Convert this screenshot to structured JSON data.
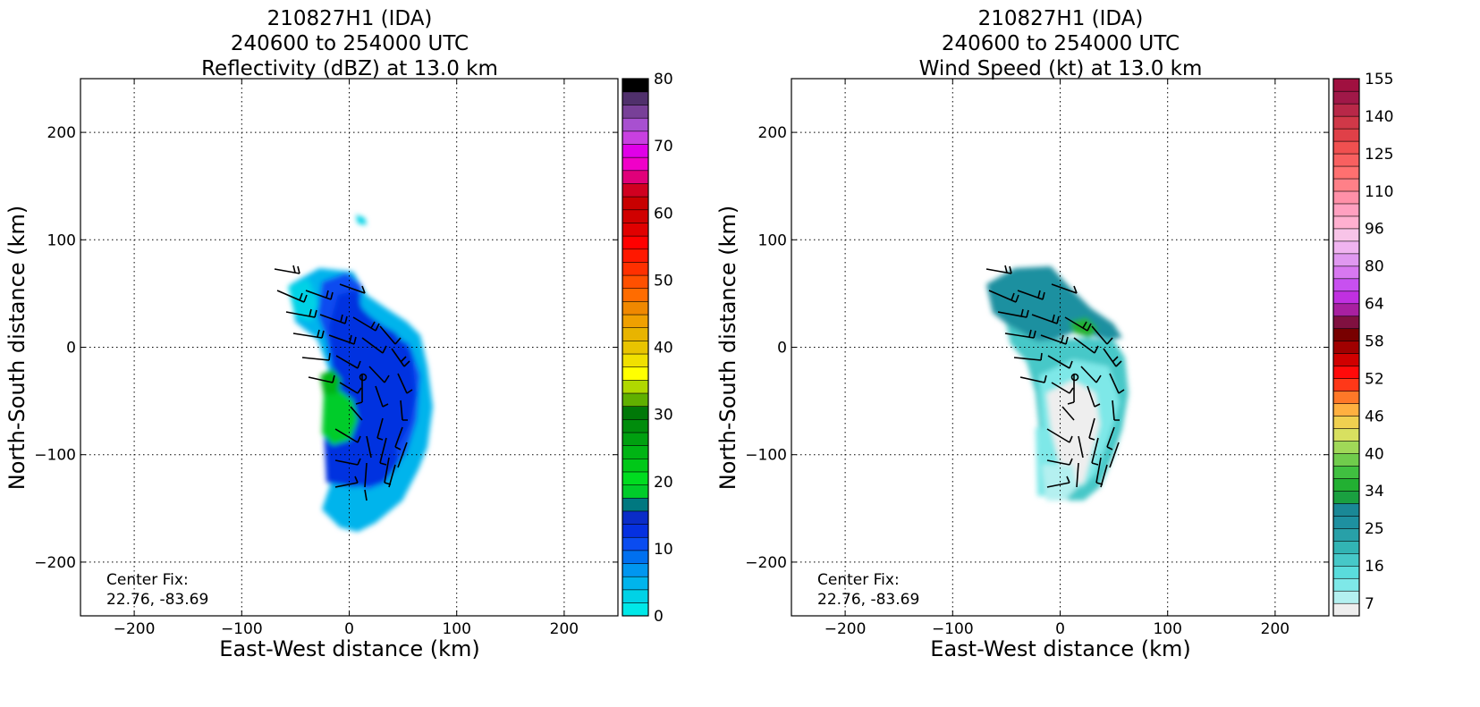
{
  "chart_data": [
    {
      "type": "heatmap",
      "title_lines": [
        "210827H1 (IDA)",
        "240600 to 254000 UTC",
        "Reflectivity (dBZ) at 13.0 km"
      ],
      "xlabel": "East-West distance (km)",
      "ylabel": "North-South distance (km)",
      "xlim": [
        -250,
        250
      ],
      "ylim": [
        -250,
        250
      ],
      "xticks": [
        -200,
        -100,
        0,
        100,
        200
      ],
      "yticks": [
        -200,
        -100,
        0,
        100,
        200
      ],
      "xtick_labels": [
        "−200",
        "−100",
        "0",
        "100",
        "200"
      ],
      "ytick_labels": [
        "−200",
        "−100",
        "0",
        "100",
        "200"
      ],
      "grid": true,
      "center_fix_label": "Center Fix:",
      "center_fix_value": "22.76, -83.69",
      "center_fix": [
        14,
        -27
      ],
      "colorbar": {
        "min": 0,
        "max": 80,
        "tick_values": [
          0,
          10,
          20,
          30,
          40,
          50,
          60,
          70,
          80
        ],
        "tick_labels": [
          "0",
          "10",
          "20",
          "30",
          "40",
          "50",
          "60",
          "70",
          "80"
        ],
        "colors": [
          "#00e8e8",
          "#00d2e6",
          "#00b4ec",
          "#0096f0",
          "#0070f0",
          "#0a4cf0",
          "#0530e0",
          "#0a2cc8",
          "#007880",
          "#00cc2a",
          "#00dc20",
          "#00c818",
          "#00b414",
          "#00a010",
          "#008c0c",
          "#007808",
          "#60b000",
          "#b0d800",
          "#ffff00",
          "#f0e000",
          "#e8c400",
          "#e8b400",
          "#f0a000",
          "#f08800",
          "#ff6c00",
          "#ff5000",
          "#ff3000",
          "#ff1800",
          "#ff0000",
          "#e00000",
          "#d00000",
          "#c80000",
          "#d00020",
          "#e0007a",
          "#f000c8",
          "#e000e8",
          "#c840e0",
          "#a850d0",
          "#784098",
          "#50306c",
          "#000000"
        ]
      },
      "wind_barbs_shown": true
    },
    {
      "type": "heatmap",
      "title_lines": [
        "210827H1 (IDA)",
        "240600 to 254000 UTC",
        "Wind Speed (kt) at 13.0 km"
      ],
      "xlabel": "East-West distance (km)",
      "ylabel": "North-South distance (km)",
      "xlim": [
        -250,
        250
      ],
      "ylim": [
        -250,
        250
      ],
      "xticks": [
        -200,
        -100,
        0,
        100,
        200
      ],
      "yticks": [
        -200,
        -100,
        0,
        100,
        200
      ],
      "xtick_labels": [
        "−200",
        "−100",
        "0",
        "100",
        "200"
      ],
      "ytick_labels": [
        "−200",
        "−100",
        "0",
        "100",
        "200"
      ],
      "grid": true,
      "center_fix_label": "Center Fix:",
      "center_fix_value": "22.76, -83.69",
      "center_fix": [
        14,
        -27
      ],
      "colorbar": {
        "tick_labels": [
          "7",
          "16",
          "25",
          "34",
          "40",
          "46",
          "52",
          "58",
          "64",
          "80",
          "96",
          "110",
          "125",
          "140",
          "155"
        ],
        "tick_levels": [
          1,
          4,
          7,
          10,
          13,
          16,
          19,
          22,
          25,
          28,
          31,
          34,
          37,
          40,
          43
        ],
        "colors": [
          "#eeeeee",
          "#b4f0f0",
          "#7ee8e8",
          "#5adcdc",
          "#46c8c8",
          "#32b4b4",
          "#28a0a8",
          "#1e90a0",
          "#1a8896",
          "#1aa040",
          "#22b032",
          "#40c040",
          "#70cc4c",
          "#a0d858",
          "#d8e060",
          "#f0d050",
          "#ffb040",
          "#ff7828",
          "#ff3818",
          "#ff0a0a",
          "#d00000",
          "#a00000",
          "#780000",
          "#801040",
          "#a820a0",
          "#c030e0",
          "#c850f0",
          "#d878f0",
          "#e098f0",
          "#f0b4f0",
          "#f8c4e8",
          "#ffb0d0",
          "#ffa0c0",
          "#ff90a8",
          "#ff8088",
          "#ff7070",
          "#f86060",
          "#f05050",
          "#e04048",
          "#d03848",
          "#b82848",
          "#a01848",
          "#a01040"
        ]
      },
      "wind_barbs_shown": true
    }
  ]
}
